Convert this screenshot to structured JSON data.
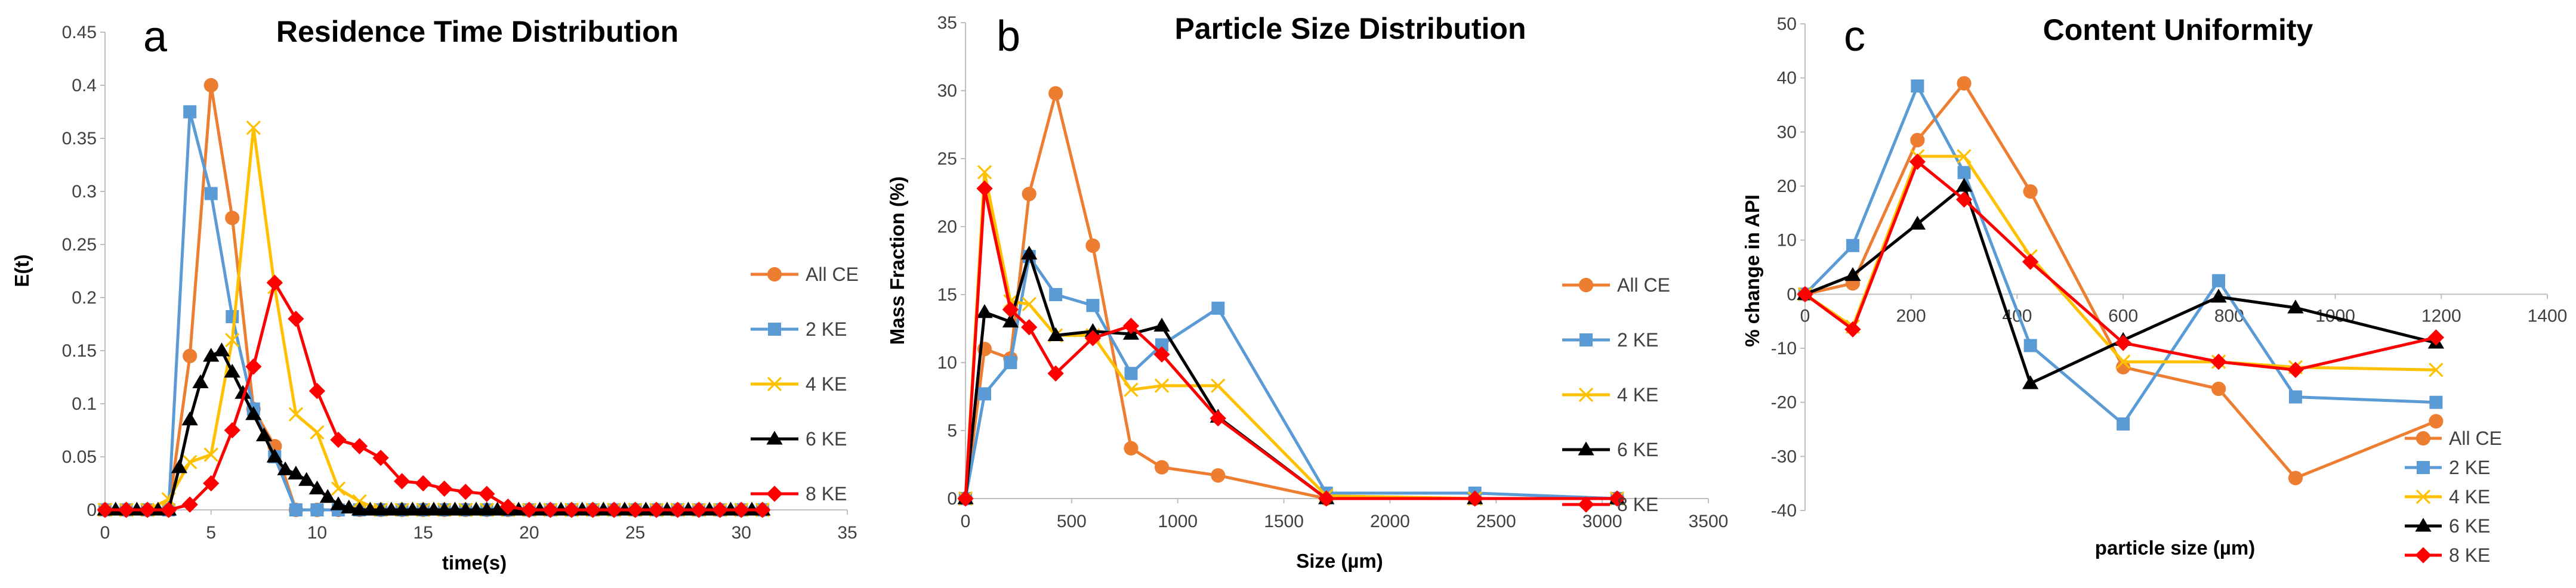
{
  "colors": {
    "all_ce": "#ED7D31",
    "ke2": "#5B9BD5",
    "ke4": "#FFC000",
    "ke6": "#000000",
    "ke8": "#FF0000",
    "axis": "#BFBFBF",
    "text": "#000000"
  },
  "chart_data": [
    {
      "panel_label": "a",
      "type": "line",
      "title": "Residence Time Distribution",
      "xlabel": "time(s)",
      "ylabel": "E(t)",
      "xlim": [
        0,
        35
      ],
      "ylim": [
        0,
        0.45
      ],
      "x_ticks": [
        0,
        5,
        10,
        15,
        20,
        25,
        30,
        35
      ],
      "y_ticks": [
        0,
        0.05,
        0.1,
        0.15,
        0.2,
        0.25,
        0.3,
        0.35,
        0.4,
        0.45
      ],
      "x_tick_labels": [
        "0",
        "5",
        "10",
        "15",
        "20",
        "25",
        "30",
        "35"
      ],
      "y_tick_labels": [
        "0",
        "0.05",
        "0.1",
        "0.15",
        "0.2",
        "0.25",
        "0.3",
        "0.35",
        "0.4",
        "0.45"
      ],
      "legend": "right",
      "series": [
        {
          "name": "All CE",
          "color": "#ED7D31",
          "marker": "circle",
          "x": [
            0,
            1,
            2,
            3,
            4,
            5,
            6,
            7,
            8,
            9,
            10,
            11,
            12,
            13,
            14,
            15,
            16,
            17,
            18,
            19,
            20,
            21,
            22,
            23,
            24,
            25,
            26,
            27,
            28,
            29,
            30,
            31
          ],
          "y": [
            0,
            0,
            0,
            0,
            0.145,
            0.4,
            0.275,
            0.095,
            0.06,
            0,
            0,
            0,
            0,
            0,
            0,
            0,
            0,
            0,
            0,
            0,
            0,
            0,
            0,
            0,
            0,
            0,
            0,
            0,
            0,
            0,
            0,
            0
          ]
        },
        {
          "name": "2 KE",
          "color": "#5B9BD5",
          "marker": "square",
          "x": [
            0,
            1,
            2,
            3,
            4,
            5,
            6,
            7,
            8,
            9,
            10,
            11,
            12,
            13,
            14,
            15,
            16,
            17,
            18,
            19,
            20,
            21,
            22,
            23,
            24,
            25,
            26,
            27,
            28,
            29,
            30,
            31
          ],
          "y": [
            0,
            0,
            0,
            0,
            0.375,
            0.298,
            0.182,
            0.095,
            0.05,
            0,
            0,
            0,
            0,
            0,
            0,
            0,
            0,
            0,
            0,
            0,
            0,
            0,
            0,
            0,
            0,
            0,
            0,
            0,
            0,
            0,
            0,
            0
          ]
        },
        {
          "name": "4 KE",
          "color": "#FFC000",
          "marker": "x",
          "x": [
            0,
            1,
            2,
            3,
            4,
            5,
            6,
            7,
            8,
            9,
            10,
            11,
            12,
            13,
            14,
            15,
            16,
            17,
            18,
            19,
            20,
            21,
            22,
            23,
            24,
            25,
            26,
            27,
            28,
            29,
            30,
            31
          ],
          "y": [
            0,
            0,
            0,
            0.01,
            0.045,
            0.052,
            0.16,
            0.36,
            0.21,
            0.09,
            0.073,
            0.02,
            0.008,
            0,
            0,
            0,
            0,
            0,
            0,
            0,
            0,
            0,
            0,
            0,
            0,
            0,
            0,
            0,
            0,
            0,
            0,
            0
          ]
        },
        {
          "name": "6 KE",
          "color": "#000000",
          "marker": "triangle",
          "x": [
            0,
            0.5,
            1,
            1.5,
            2,
            2.5,
            3,
            3.5,
            4,
            4.5,
            5,
            5.5,
            6,
            6.5,
            7,
            7.5,
            8,
            8.5,
            9,
            9.5,
            10,
            10.5,
            11,
            11.5,
            12,
            12.5,
            13,
            13.5,
            14,
            14.5,
            15,
            15.5,
            16,
            16.5,
            17,
            17.5,
            18,
            18.5,
            19,
            19.5,
            20,
            20.5,
            21,
            21.5,
            22,
            22.5,
            23,
            23.5,
            24,
            24.5,
            25,
            25.5,
            26,
            26.5,
            27,
            27.5,
            28,
            28.5,
            29,
            29.5,
            30,
            30.5,
            31
          ],
          "y": [
            0,
            0,
            0,
            0,
            0,
            0,
            0,
            0.04,
            0.085,
            0.12,
            0.145,
            0.15,
            0.13,
            0.11,
            0.09,
            0.07,
            0.05,
            0.038,
            0.034,
            0.028,
            0.02,
            0.012,
            0.005,
            0.002,
            0,
            0,
            0,
            0,
            0,
            0,
            0,
            0,
            0,
            0,
            0,
            0,
            0,
            0,
            0,
            0,
            0,
            0,
            0,
            0,
            0,
            0,
            0,
            0,
            0,
            0,
            0,
            0,
            0,
            0,
            0,
            0,
            0,
            0,
            0,
            0,
            0,
            0,
            0
          ]
        },
        {
          "name": "8 KE",
          "color": "#FF0000",
          "marker": "diamond",
          "x": [
            0,
            1,
            2,
            3,
            4,
            5,
            6,
            7,
            8,
            9,
            10,
            11,
            12,
            13,
            14,
            15,
            16,
            17,
            18,
            19,
            20,
            21,
            22,
            23,
            24,
            25,
            26,
            27,
            28,
            29,
            30,
            31
          ],
          "y": [
            0,
            0,
            0,
            0,
            0.005,
            0.025,
            0.075,
            0.135,
            0.214,
            0.18,
            0.112,
            0.066,
            0.06,
            0.049,
            0.027,
            0.025,
            0.02,
            0.017,
            0.015,
            0.003,
            0,
            0,
            0,
            0,
            0,
            0,
            0,
            0,
            0,
            0,
            0,
            0
          ]
        }
      ]
    },
    {
      "panel_label": "b",
      "type": "line",
      "title": "Particle Size Distribution",
      "xlabel": "Size (µm)",
      "ylabel": "Mass Fraction (%)",
      "xlim": [
        0,
        3500
      ],
      "ylim": [
        0,
        35
      ],
      "x_ticks": [
        0,
        500,
        1000,
        1500,
        2000,
        2500,
        3000,
        3500
      ],
      "y_ticks": [
        0,
        5,
        10,
        15,
        20,
        25,
        30,
        35
      ],
      "x_tick_labels": [
        "0",
        "500",
        "1000",
        "1500",
        "2000",
        "2500",
        "3000",
        "3500"
      ],
      "y_tick_labels": [
        "0",
        "5",
        "10",
        "15",
        "20",
        "25",
        "30",
        "35"
      ],
      "legend": "right",
      "series": [
        {
          "name": "All CE",
          "color": "#ED7D31",
          "marker": "circle",
          "x": [
            0,
            90,
            212,
            300,
            425,
            600,
            780,
            925,
            1190,
            1700,
            2400,
            3070
          ],
          "y": [
            0,
            11,
            10.3,
            22.4,
            29.8,
            18.6,
            3.7,
            2.3,
            1.7,
            0,
            0,
            0
          ]
        },
        {
          "name": "2 KE",
          "color": "#5B9BD5",
          "marker": "square",
          "x": [
            0,
            90,
            212,
            300,
            425,
            600,
            780,
            925,
            1190,
            1700,
            2400,
            3070
          ],
          "y": [
            0,
            7.7,
            10,
            17.8,
            15,
            14.2,
            9.2,
            11.3,
            14,
            0.4,
            0.4,
            0
          ]
        },
        {
          "name": "4 KE",
          "color": "#FFC000",
          "marker": "x",
          "x": [
            0,
            90,
            212,
            300,
            425,
            600,
            780,
            925,
            1190,
            1700,
            2400,
            3070
          ],
          "y": [
            0,
            24,
            14.5,
            14.3,
            12,
            12,
            8,
            8.3,
            8.3,
            0.2,
            0,
            0
          ]
        },
        {
          "name": "6 KE",
          "color": "#000000",
          "marker": "triangle",
          "x": [
            0,
            90,
            212,
            300,
            425,
            600,
            780,
            925,
            1190,
            1700,
            2400,
            3070
          ],
          "y": [
            0,
            13.7,
            13,
            18,
            12,
            12.3,
            12.1,
            12.7,
            6,
            0,
            0,
            0
          ]
        },
        {
          "name": "8 KE",
          "color": "#FF0000",
          "marker": "diamond",
          "x": [
            0,
            90,
            212,
            300,
            425,
            600,
            780,
            925,
            1190,
            1700,
            2400,
            3070
          ],
          "y": [
            0,
            22.8,
            13.9,
            12.6,
            9.2,
            11.8,
            12.7,
            10.6,
            5.9,
            0,
            0,
            0
          ]
        }
      ]
    },
    {
      "panel_label": "c",
      "type": "line",
      "title": "Content Uniformity",
      "xlabel": "particle size (µm)",
      "ylabel": "% change in API",
      "xlim": [
        0,
        1400
      ],
      "ylim": [
        -40,
        50
      ],
      "x_ticks": [
        0,
        200,
        400,
        600,
        800,
        1000,
        1200,
        1400
      ],
      "y_ticks": [
        -40,
        -30,
        -20,
        -10,
        0,
        10,
        20,
        30,
        40,
        50
      ],
      "x_tick_labels": [
        "0",
        "200",
        "400",
        "600",
        "800",
        "1000",
        "1200",
        "1400"
      ],
      "y_tick_labels": [
        "-40",
        "-30",
        "-20",
        "-10",
        "0",
        "10",
        "20",
        "30",
        "40",
        "50"
      ],
      "legend": "bottom-right",
      "series": [
        {
          "name": "All CE",
          "color": "#ED7D31",
          "marker": "circle",
          "x": [
            0,
            90,
            212,
            300,
            425,
            600,
            780,
            925,
            1190
          ],
          "y": [
            0,
            2,
            28.5,
            39,
            19,
            -13.5,
            -17.5,
            -34,
            -23.5
          ]
        },
        {
          "name": "2 KE",
          "color": "#5B9BD5",
          "marker": "square",
          "x": [
            0,
            90,
            212,
            300,
            425,
            600,
            780,
            925,
            1190
          ],
          "y": [
            0,
            9,
            38.5,
            22.5,
            -9.5,
            -24,
            2.5,
            -19,
            -20
          ]
        },
        {
          "name": "4 KE",
          "color": "#FFC000",
          "marker": "x",
          "x": [
            0,
            90,
            212,
            300,
            425,
            600,
            780,
            925,
            1190
          ],
          "y": [
            0,
            -6,
            25.5,
            25.5,
            7,
            -12.5,
            -12.5,
            -13.5,
            -14
          ]
        },
        {
          "name": "6 KE",
          "color": "#000000",
          "marker": "triangle",
          "x": [
            0,
            90,
            212,
            300,
            425,
            600,
            780,
            925,
            1190
          ],
          "y": [
            0,
            3.5,
            13,
            20,
            -16.5,
            -8.5,
            -0.5,
            -2.5,
            -9
          ]
        },
        {
          "name": "8 KE",
          "color": "#FF0000",
          "marker": "diamond",
          "x": [
            0,
            90,
            212,
            300,
            425,
            600,
            780,
            925,
            1190
          ],
          "y": [
            0,
            -6.5,
            24.5,
            17.5,
            6,
            -9,
            -12.5,
            -14,
            -8
          ]
        }
      ]
    }
  ]
}
